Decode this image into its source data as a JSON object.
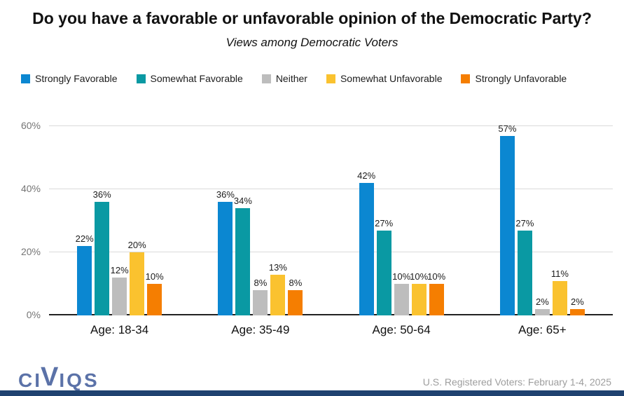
{
  "title": "Do you have a favorable or unfavorable opinion of the Democratic Party?",
  "subtitle": "Views among Democratic Voters",
  "chart_data": {
    "type": "bar",
    "categories": [
      "Age: 18-34",
      "Age: 35-49",
      "Age: 50-64",
      "Age: 65+"
    ],
    "series": [
      {
        "name": "Strongly Favorable",
        "color": "#0b87d1",
        "values": [
          22,
          36,
          42,
          57
        ]
      },
      {
        "name": "Somewhat Favorable",
        "color": "#0a99a3",
        "values": [
          36,
          34,
          27,
          27
        ]
      },
      {
        "name": "Neither",
        "color": "#bdbdbd",
        "values": [
          12,
          8,
          10,
          2
        ]
      },
      {
        "name": "Somewhat Unfavorable",
        "color": "#fac22f",
        "values": [
          20,
          13,
          10,
          11
        ]
      },
      {
        "name": "Strongly Unfavorable",
        "color": "#f57e01",
        "values": [
          10,
          8,
          10,
          2
        ]
      }
    ],
    "value_suffix": "%",
    "yticks": [
      "0%",
      "20%",
      "40%",
      "60%"
    ],
    "ylim": [
      0,
      60
    ],
    "grid": true,
    "legend_position": "top-left"
  },
  "footer": {
    "logo_text": "CIVIQS",
    "source_note": "U.S. Registered Voters: February 1-4, 2025"
  },
  "colors": {
    "title_text": "#111111",
    "tick_text": "#757575",
    "grid_line": "#dadada",
    "axis_line": "#222222",
    "logo": "#5b72a8",
    "source_text": "#9e9e9e",
    "bottom_bar": "#1f4270"
  }
}
